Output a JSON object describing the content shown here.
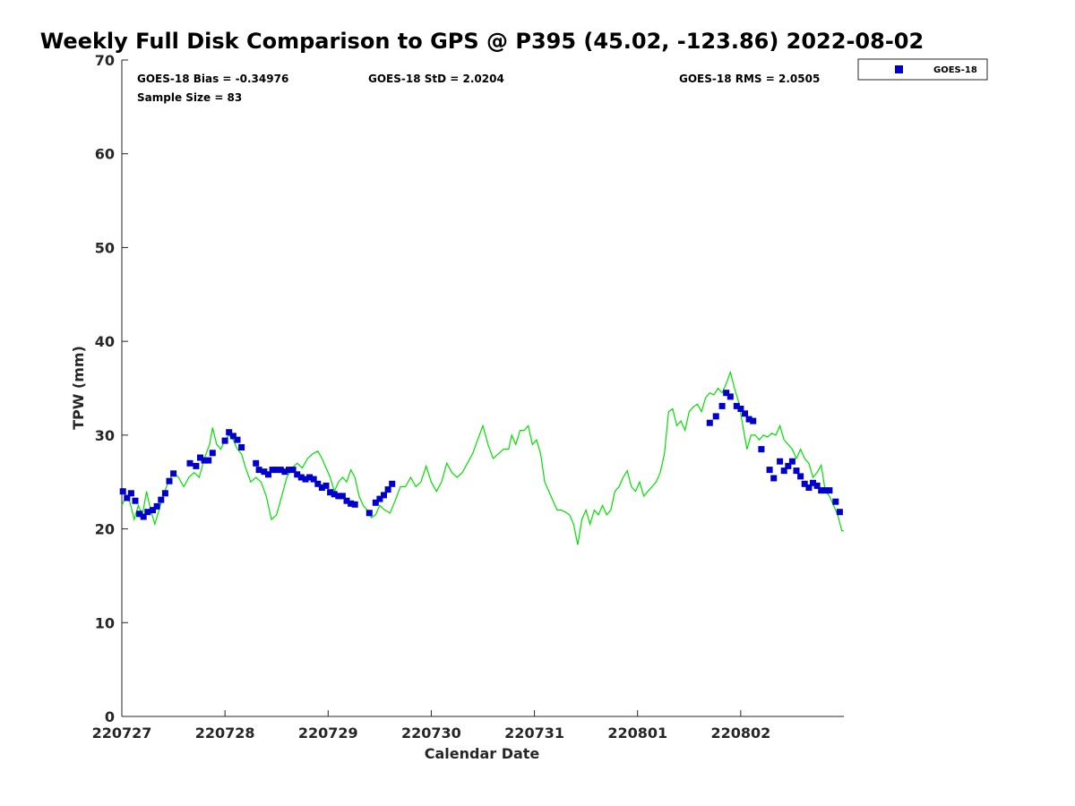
{
  "chart_data": {
    "type": "line",
    "title": "Weekly Full Disk Comparison to GPS @ P395 (45.02, -123.86) 2022-08-02",
    "xlabel": "Calendar Date",
    "ylabel": "TPW (mm)",
    "xlim": [
      0,
      7
    ],
    "ylim": [
      0,
      70
    ],
    "x_ticks": [
      0,
      1,
      2,
      3,
      4,
      5,
      6
    ],
    "x_tick_labels": [
      "220727",
      "220728",
      "220729",
      "220730",
      "220731",
      "220801",
      "220802"
    ],
    "y_ticks": [
      0,
      10,
      20,
      30,
      40,
      50,
      60,
      70
    ],
    "grid": false,
    "legend_placement": "outside-top-right",
    "stats": {
      "bias": "GOES-18 Bias = -0.34976",
      "std": "GOES-18 StD = 2.0204",
      "rms": "GOES-18 RMS = 2.0505",
      "sample": "Sample Size = 83"
    },
    "colors": {
      "gps": "#00e000",
      "goes": "#0000cc"
    },
    "gps_line": [
      [
        0.0,
        22.5
      ],
      [
        0.04,
        23.5
      ],
      [
        0.08,
        22.8
      ],
      [
        0.12,
        21.0
      ],
      [
        0.16,
        22.5
      ],
      [
        0.2,
        21.5
      ],
      [
        0.24,
        24.0
      ],
      [
        0.28,
        22.0
      ],
      [
        0.32,
        20.5
      ],
      [
        0.36,
        22.0
      ],
      [
        0.4,
        23.5
      ],
      [
        0.45,
        25.0
      ],
      [
        0.5,
        26.0
      ],
      [
        0.55,
        25.5
      ],
      [
        0.6,
        24.5
      ],
      [
        0.65,
        25.5
      ],
      [
        0.7,
        26.0
      ],
      [
        0.75,
        25.5
      ],
      [
        0.8,
        27.5
      ],
      [
        0.85,
        29.0
      ],
      [
        0.88,
        30.8
      ],
      [
        0.92,
        29.0
      ],
      [
        0.96,
        28.5
      ],
      [
        1.0,
        29.5
      ],
      [
        1.04,
        30.0
      ],
      [
        1.08,
        29.5
      ],
      [
        1.12,
        28.5
      ],
      [
        1.16,
        28.0
      ],
      [
        1.2,
        26.5
      ],
      [
        1.25,
        25.0
      ],
      [
        1.3,
        25.5
      ],
      [
        1.35,
        25.0
      ],
      [
        1.4,
        23.5
      ],
      [
        1.45,
        21.0
      ],
      [
        1.5,
        21.5
      ],
      [
        1.55,
        23.5
      ],
      [
        1.6,
        25.5
      ],
      [
        1.65,
        26.5
      ],
      [
        1.7,
        27.0
      ],
      [
        1.75,
        26.5
      ],
      [
        1.8,
        27.5
      ],
      [
        1.85,
        28.0
      ],
      [
        1.9,
        28.3
      ],
      [
        1.94,
        27.5
      ],
      [
        1.98,
        26.5
      ],
      [
        2.02,
        25.5
      ],
      [
        2.06,
        24.0
      ],
      [
        2.1,
        25.0
      ],
      [
        2.14,
        25.5
      ],
      [
        2.18,
        25.0
      ],
      [
        2.22,
        26.3
      ],
      [
        2.26,
        25.5
      ],
      [
        2.3,
        23.5
      ],
      [
        2.34,
        22.5
      ],
      [
        2.38,
        22.0
      ],
      [
        2.42,
        21.2
      ],
      [
        2.46,
        21.5
      ],
      [
        2.5,
        22.5
      ],
      [
        2.55,
        22.0
      ],
      [
        2.6,
        21.7
      ],
      [
        2.65,
        23.0
      ],
      [
        2.7,
        24.5
      ],
      [
        2.75,
        24.5
      ],
      [
        2.8,
        25.5
      ],
      [
        2.85,
        24.5
      ],
      [
        2.9,
        25.0
      ],
      [
        2.95,
        26.7
      ],
      [
        3.0,
        25.0
      ],
      [
        3.05,
        24.0
      ],
      [
        3.1,
        25.0
      ],
      [
        3.15,
        27.0
      ],
      [
        3.2,
        26.0
      ],
      [
        3.25,
        25.5
      ],
      [
        3.3,
        26.0
      ],
      [
        3.35,
        27.0
      ],
      [
        3.4,
        28.0
      ],
      [
        3.45,
        29.5
      ],
      [
        3.5,
        31.0
      ],
      [
        3.55,
        29.0
      ],
      [
        3.6,
        27.5
      ],
      [
        3.65,
        28.0
      ],
      [
        3.7,
        28.5
      ],
      [
        3.75,
        28.5
      ],
      [
        3.78,
        30.0
      ],
      [
        3.82,
        29.0
      ],
      [
        3.86,
        30.5
      ],
      [
        3.9,
        30.5
      ],
      [
        3.94,
        31.0
      ],
      [
        3.98,
        29.0
      ],
      [
        4.02,
        29.5
      ],
      [
        4.06,
        28.0
      ],
      [
        4.1,
        25.0
      ],
      [
        4.14,
        24.0
      ],
      [
        4.18,
        23.0
      ],
      [
        4.22,
        22.0
      ],
      [
        4.26,
        22.0
      ],
      [
        4.3,
        21.8
      ],
      [
        4.34,
        21.5
      ],
      [
        4.38,
        20.5
      ],
      [
        4.42,
        18.3
      ],
      [
        4.46,
        21.0
      ],
      [
        4.5,
        22.0
      ],
      [
        4.54,
        20.5
      ],
      [
        4.58,
        22.0
      ],
      [
        4.62,
        21.5
      ],
      [
        4.66,
        22.5
      ],
      [
        4.7,
        21.5
      ],
      [
        4.74,
        22.0
      ],
      [
        4.78,
        24.0
      ],
      [
        4.82,
        24.5
      ],
      [
        4.86,
        25.5
      ],
      [
        4.9,
        26.2
      ],
      [
        4.94,
        24.5
      ],
      [
        4.98,
        24.0
      ],
      [
        5.02,
        25.0
      ],
      [
        5.06,
        23.5
      ],
      [
        5.1,
        24.0
      ],
      [
        5.14,
        24.5
      ],
      [
        5.18,
        25.0
      ],
      [
        5.22,
        26.0
      ],
      [
        5.26,
        28.0
      ],
      [
        5.3,
        32.5
      ],
      [
        5.34,
        32.8
      ],
      [
        5.38,
        31.0
      ],
      [
        5.42,
        31.5
      ],
      [
        5.46,
        30.5
      ],
      [
        5.5,
        32.5
      ],
      [
        5.54,
        33.0
      ],
      [
        5.58,
        33.3
      ],
      [
        5.62,
        32.5
      ],
      [
        5.66,
        34.0
      ],
      [
        5.7,
        34.5
      ],
      [
        5.74,
        34.3
      ],
      [
        5.78,
        35.0
      ],
      [
        5.82,
        34.5
      ],
      [
        5.86,
        35.5
      ],
      [
        5.9,
        36.7
      ],
      [
        5.94,
        35.0
      ],
      [
        5.98,
        33.5
      ],
      [
        6.02,
        31.0
      ],
      [
        6.06,
        28.5
      ],
      [
        6.1,
        30.0
      ],
      [
        6.14,
        30.0
      ],
      [
        6.18,
        29.5
      ],
      [
        6.22,
        30.0
      ],
      [
        6.26,
        29.8
      ],
      [
        6.3,
        30.2
      ],
      [
        6.34,
        30.0
      ],
      [
        6.38,
        31.0
      ],
      [
        6.42,
        29.5
      ],
      [
        6.46,
        29.0
      ],
      [
        6.5,
        28.5
      ],
      [
        6.54,
        27.5
      ],
      [
        6.58,
        28.5
      ],
      [
        6.62,
        27.5
      ],
      [
        6.66,
        27.0
      ],
      [
        6.7,
        25.5
      ],
      [
        6.74,
        26.0
      ],
      [
        6.78,
        26.8
      ],
      [
        6.82,
        24.0
      ],
      [
        6.86,
        23.5
      ],
      [
        6.9,
        22.5
      ],
      [
        6.94,
        21.5
      ],
      [
        6.98,
        19.8
      ],
      [
        7.0,
        19.8
      ]
    ],
    "goes_points": [
      [
        0.01,
        24.0
      ],
      [
        0.05,
        23.3
      ],
      [
        0.09,
        23.8
      ],
      [
        0.13,
        23.0
      ],
      [
        0.17,
        21.6
      ],
      [
        0.21,
        21.3
      ],
      [
        0.25,
        21.8
      ],
      [
        0.3,
        22.0
      ],
      [
        0.34,
        22.4
      ],
      [
        0.38,
        23.1
      ],
      [
        0.42,
        23.8
      ],
      [
        0.46,
        25.1
      ],
      [
        0.5,
        25.9
      ],
      [
        0.66,
        27.0
      ],
      [
        0.72,
        26.7
      ],
      [
        0.76,
        27.6
      ],
      [
        0.8,
        27.3
      ],
      [
        0.84,
        27.3
      ],
      [
        0.88,
        28.1
      ],
      [
        1.0,
        29.4
      ],
      [
        1.04,
        30.3
      ],
      [
        1.08,
        29.9
      ],
      [
        1.12,
        29.5
      ],
      [
        1.16,
        28.7
      ],
      [
        1.3,
        27.0
      ],
      [
        1.33,
        26.3
      ],
      [
        1.38,
        26.1
      ],
      [
        1.42,
        25.8
      ],
      [
        1.46,
        26.3
      ],
      [
        1.5,
        26.3
      ],
      [
        1.54,
        26.3
      ],
      [
        1.58,
        26.1
      ],
      [
        1.62,
        26.3
      ],
      [
        1.66,
        26.3
      ],
      [
        1.7,
        25.8
      ],
      [
        1.74,
        25.5
      ],
      [
        1.78,
        25.3
      ],
      [
        1.82,
        25.5
      ],
      [
        1.86,
        25.3
      ],
      [
        1.9,
        24.8
      ],
      [
        1.94,
        24.4
      ],
      [
        1.98,
        24.6
      ],
      [
        2.02,
        23.9
      ],
      [
        2.06,
        23.7
      ],
      [
        2.1,
        23.5
      ],
      [
        2.14,
        23.5
      ],
      [
        2.18,
        23.0
      ],
      [
        2.22,
        22.7
      ],
      [
        2.26,
        22.6
      ],
      [
        2.4,
        21.7
      ],
      [
        2.46,
        22.8
      ],
      [
        2.5,
        23.2
      ],
      [
        2.54,
        23.6
      ],
      [
        2.58,
        24.2
      ],
      [
        2.62,
        24.8
      ],
      [
        5.7,
        31.3
      ],
      [
        5.76,
        32.0
      ],
      [
        5.82,
        33.1
      ],
      [
        5.86,
        34.5
      ],
      [
        5.9,
        34.1
      ],
      [
        5.96,
        33.1
      ],
      [
        6.0,
        32.8
      ],
      [
        6.04,
        32.3
      ],
      [
        6.08,
        31.7
      ],
      [
        6.12,
        31.5
      ],
      [
        6.2,
        28.5
      ],
      [
        6.28,
        26.3
      ],
      [
        6.32,
        25.4
      ],
      [
        6.38,
        27.2
      ],
      [
        6.42,
        26.2
      ],
      [
        6.46,
        26.7
      ],
      [
        6.5,
        27.2
      ],
      [
        6.54,
        26.2
      ],
      [
        6.58,
        25.6
      ],
      [
        6.62,
        24.8
      ],
      [
        6.66,
        24.4
      ],
      [
        6.7,
        24.9
      ],
      [
        6.74,
        24.6
      ],
      [
        6.78,
        24.1
      ],
      [
        6.82,
        24.1
      ],
      [
        6.86,
        24.1
      ],
      [
        6.92,
        22.9
      ],
      [
        6.96,
        21.8
      ]
    ],
    "series": [
      {
        "name": "GOES-18",
        "marker": "square",
        "color": "#0000cc"
      }
    ]
  }
}
